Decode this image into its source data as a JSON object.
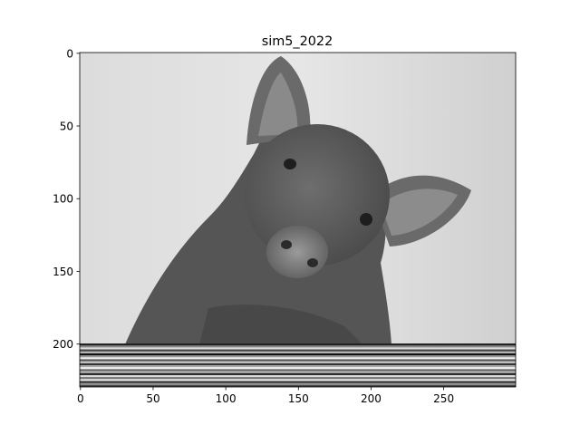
{
  "chart_data": {
    "type": "image",
    "title": "sim5_2022",
    "xlim": [
      -0.5,
      299.5
    ],
    "xticks": [
      0,
      50,
      100,
      150,
      200,
      250
    ],
    "ylim": [
      229.5,
      -0.5
    ],
    "yticks": [
      0,
      50,
      100,
      150,
      200
    ]
  }
}
